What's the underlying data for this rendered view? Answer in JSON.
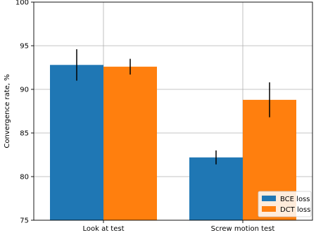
{
  "chart_data": {
    "type": "bar",
    "title": "",
    "xlabel": "",
    "ylabel": "Convergence rate, %",
    "categories": [
      "Look at test",
      "Screw motion test"
    ],
    "ylim": [
      75,
      100
    ],
    "yticks": [
      75,
      80,
      85,
      90,
      95,
      100
    ],
    "grid": true,
    "legend_position": "bottom-right",
    "series": [
      {
        "name": "BCE loss",
        "color": "#1f77b4",
        "values": [
          92.8,
          82.2
        ],
        "errors": [
          1.8,
          0.8
        ]
      },
      {
        "name": "DCT loss",
        "color": "#ff7f0e",
        "values": [
          92.6,
          88.8
        ],
        "errors": [
          0.9,
          2.0
        ]
      }
    ]
  }
}
